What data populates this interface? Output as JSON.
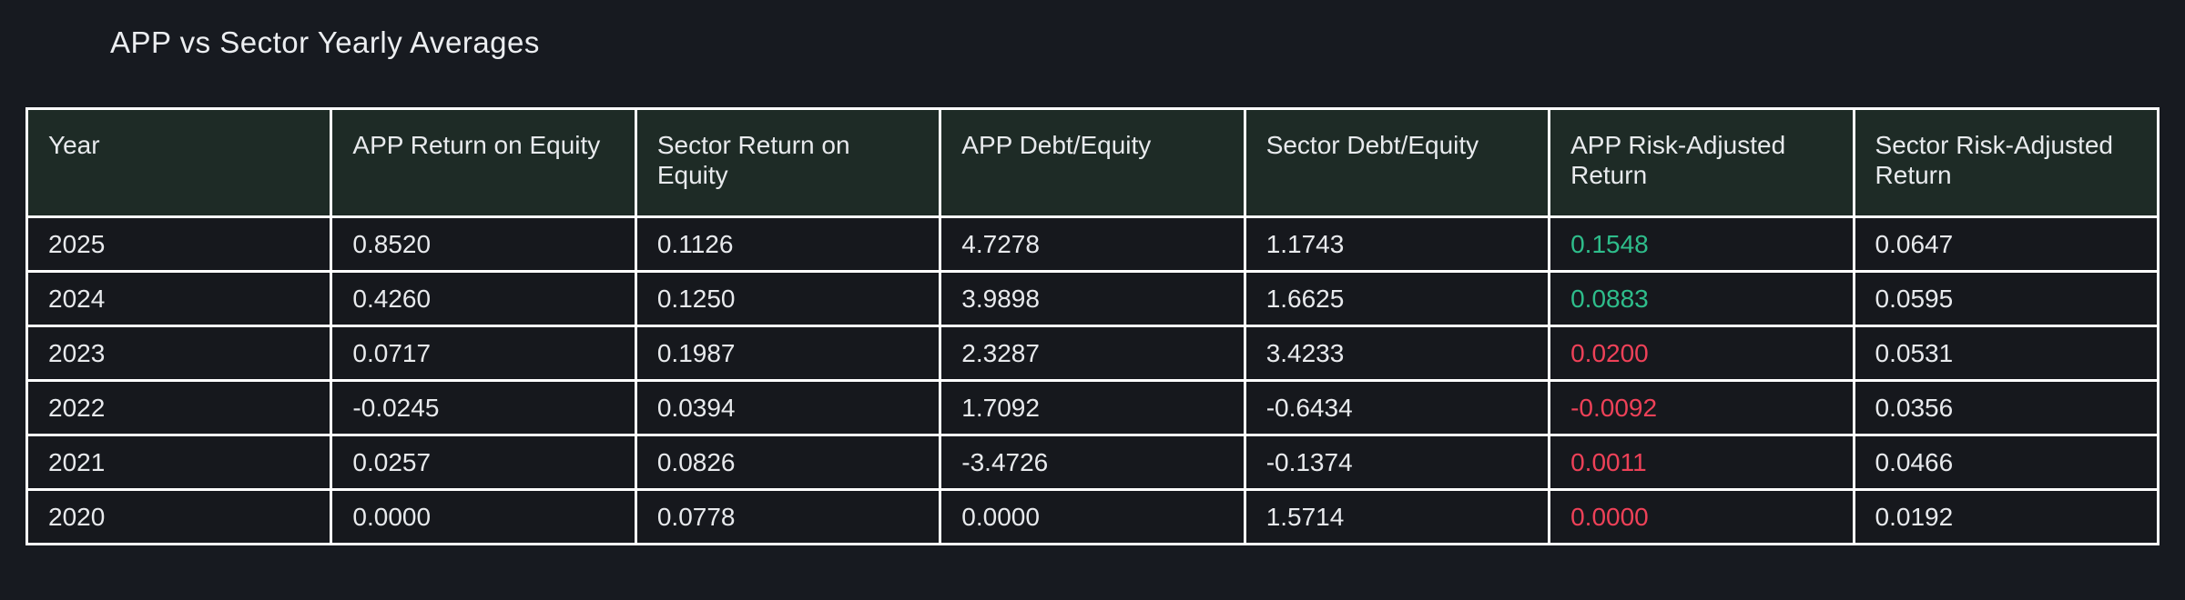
{
  "title": "APP vs Sector Yearly Averages",
  "colors": {
    "page_background": "#171a20",
    "header_background": "#1e2b26",
    "row_background": "#16181d",
    "border": "#ffffff",
    "text": "#e8eaed",
    "positive_value": "#2ebd8b",
    "negative_value": "#ee4158"
  },
  "table": {
    "columns": [
      "Year",
      "APP Return on Equity",
      "Sector Return on Equity",
      "APP Debt/Equity",
      "Sector Debt/Equity",
      "APP Risk-Adjusted Return",
      "Sector Risk-Adjusted Return"
    ],
    "rows": [
      {
        "cells": [
          "2025",
          "0.8520",
          "0.1126",
          "4.7278",
          "1.1743",
          "0.1548",
          "0.0647"
        ],
        "app_rar_class": "pos"
      },
      {
        "cells": [
          "2024",
          "0.4260",
          "0.1250",
          "3.9898",
          "1.6625",
          "0.0883",
          "0.0595"
        ],
        "app_rar_class": "pos"
      },
      {
        "cells": [
          "2023",
          "0.0717",
          "0.1987",
          "2.3287",
          "3.4233",
          "0.0200",
          "0.0531"
        ],
        "app_rar_class": "neg"
      },
      {
        "cells": [
          "2022",
          "-0.0245",
          "0.0394",
          "1.7092",
          "-0.6434",
          "-0.0092",
          "0.0356"
        ],
        "app_rar_class": "neg"
      },
      {
        "cells": [
          "2021",
          "0.0257",
          "0.0826",
          "-3.4726",
          "-0.1374",
          "0.0011",
          "0.0466"
        ],
        "app_rar_class": "neg"
      },
      {
        "cells": [
          "2020",
          "0.0000",
          "0.0778",
          "0.0000",
          "1.5714",
          "0.0000",
          "0.0192"
        ],
        "app_rar_class": "neg"
      }
    ]
  },
  "chart_data": {
    "type": "table",
    "title": "APP vs Sector Yearly Averages",
    "columns": [
      "Year",
      "APP Return on Equity",
      "Sector Return on Equity",
      "APP Debt/Equity",
      "Sector Debt/Equity",
      "APP Risk-Adjusted Return",
      "Sector Risk-Adjusted Return"
    ],
    "rows": [
      [
        2025,
        0.852,
        0.1126,
        4.7278,
        1.1743,
        0.1548,
        0.0647
      ],
      [
        2024,
        0.426,
        0.125,
        3.9898,
        1.6625,
        0.0883,
        0.0595
      ],
      [
        2023,
        0.0717,
        0.1987,
        2.3287,
        3.4233,
        0.02,
        0.0531
      ],
      [
        2022,
        -0.0245,
        0.0394,
        1.7092,
        -0.6434,
        -0.0092,
        0.0356
      ],
      [
        2021,
        0.0257,
        0.0826,
        -3.4726,
        -0.1374,
        0.0011,
        0.0466
      ],
      [
        2020,
        0.0,
        0.0778,
        0.0,
        1.5714,
        0.0,
        0.0192
      ]
    ],
    "value_color_rule": "APP Risk-Adjusted Return column: green (#2ebd8b) for 2025/2024, red (#ee4158) for 2023-2020"
  }
}
